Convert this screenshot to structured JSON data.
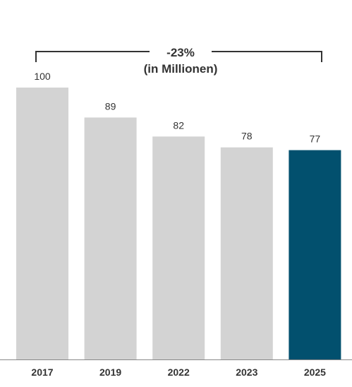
{
  "chart_data": {
    "type": "bar",
    "categories": [
      "2017",
      "2019",
      "2022",
      "2023",
      "2025"
    ],
    "values": [
      100,
      89,
      82,
      78,
      77
    ],
    "data_labels": [
      "100",
      "89",
      "82",
      "78",
      "77"
    ],
    "title": "",
    "xlabel": "",
    "ylabel": "",
    "ylim": [
      0,
      100
    ],
    "grid": false,
    "annotation": {
      "change": "-23%",
      "unit": "(in Millionen)",
      "from": "2017",
      "to": "2025"
    },
    "colors": {
      "default": "#d3d3d3",
      "highlight": "#02506e",
      "text": "#333333",
      "axis": "#888888"
    },
    "highlight_category": "2025"
  }
}
